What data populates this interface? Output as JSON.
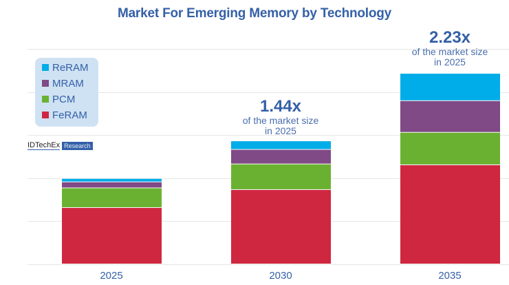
{
  "chart_data": {
    "type": "bar",
    "stacked": true,
    "title": "Market For Emerging Memory by Technology",
    "xlabel": "",
    "ylabel": "",
    "y_units": "relative index (2025 total = 100)",
    "ylim": [
      0,
      252
    ],
    "grid": true,
    "grid_step": 50.4,
    "y_tick_labels_shown": false,
    "legend_position": "top-left",
    "categories": [
      "2025",
      "2030",
      "2035"
    ],
    "series": [
      {
        "name": "FeRAM",
        "color": "#cf2740",
        "values": [
          66,
          87,
          116
        ]
      },
      {
        "name": "PCM",
        "color": "#6bb131",
        "values": [
          23,
          30,
          38
        ]
      },
      {
        "name": "MRAM",
        "color": "#7f4a85",
        "values": [
          7,
          17,
          37
        ]
      },
      {
        "name": "ReRAM",
        "color": "#00ade8",
        "values": [
          4,
          10,
          32
        ]
      }
    ],
    "legend_order": [
      "ReRAM",
      "MRAM",
      "PCM",
      "FeRAM"
    ],
    "annotations": [
      {
        "category": "2030",
        "big": "1.44x",
        "line1": "of the market size",
        "line2": "in 2025"
      },
      {
        "category": "2035",
        "big": "2.23x",
        "line1": "of the market size",
        "line2": "in 2025"
      }
    ]
  },
  "legend": [
    {
      "label": "ReRAM",
      "color": "#00ade8"
    },
    {
      "label": "MRAM",
      "color": "#7f4a85"
    },
    {
      "label": "PCM",
      "color": "#6bb131"
    },
    {
      "label": "FeRAM",
      "color": "#cf2740"
    }
  ],
  "brand": {
    "name": "IDTechEx",
    "tag": "Research"
  },
  "colors": {
    "accent": "#3460a8",
    "legend_bg": "#cfe2f3",
    "grid": "#e6e6e6"
  }
}
